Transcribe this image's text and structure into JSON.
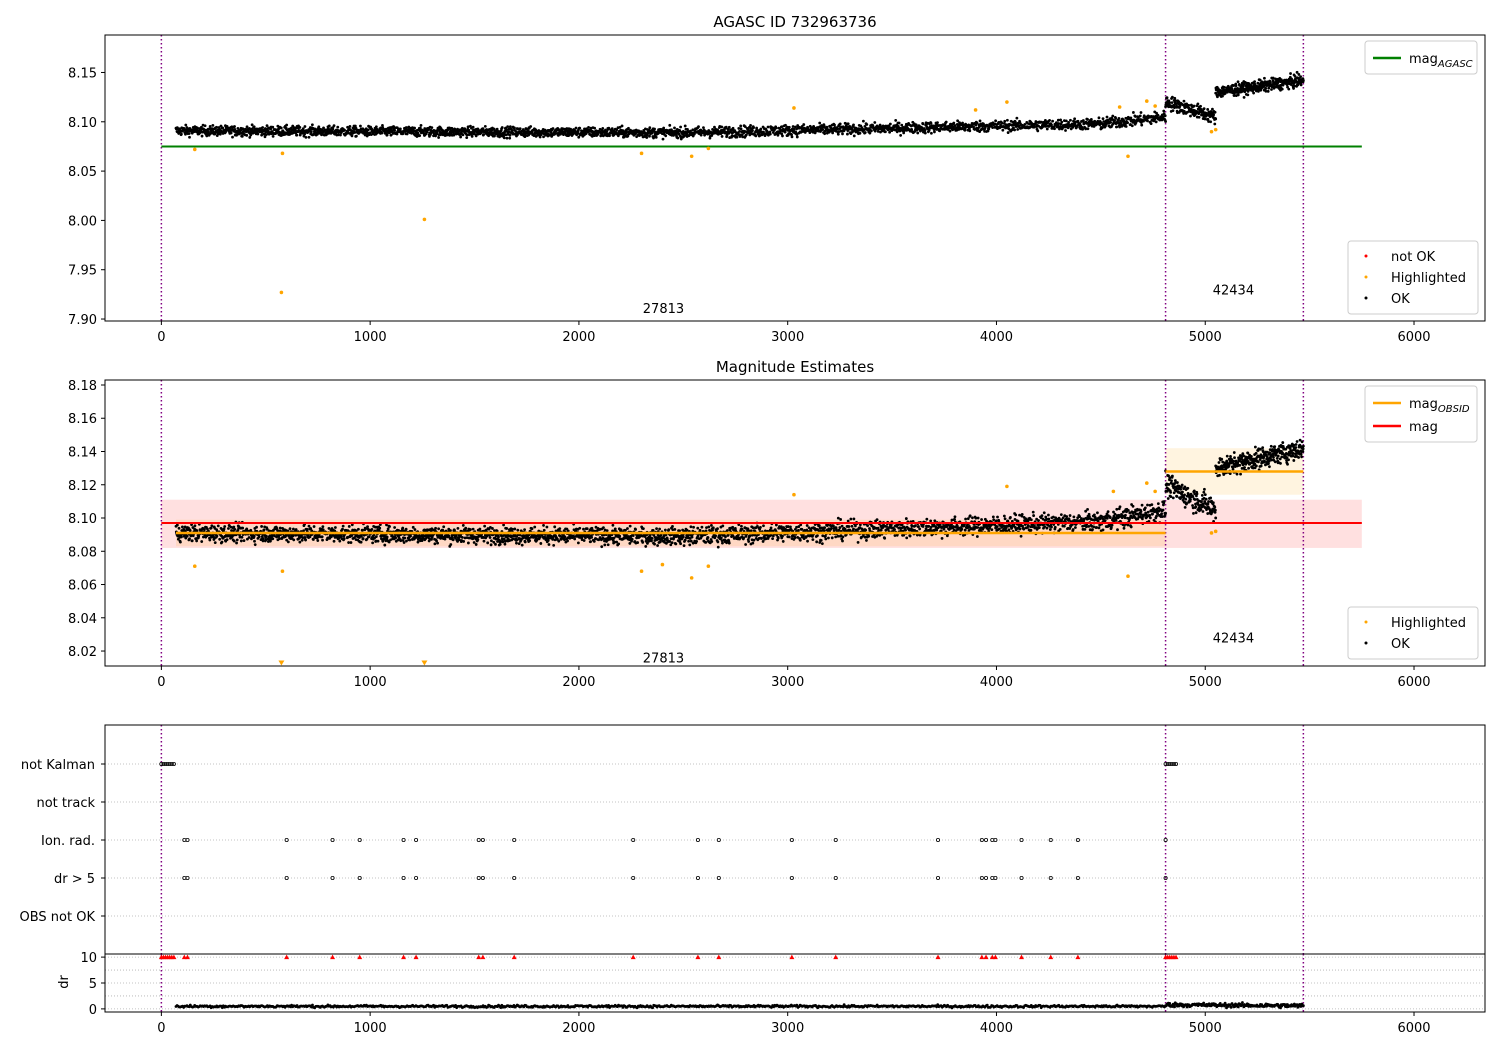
{
  "colors": {
    "ok": "#000000",
    "not_ok": "#ff0000",
    "highlighted": "#ffa500",
    "mag_agasc": "#008000",
    "mag_obsid": "#ffa500",
    "mag": "#ff0000",
    "boundary": "#800080"
  },
  "chart_data": [
    {
      "type": "scatter",
      "title": "AGASC ID 732963736",
      "xlim": [
        -270,
        6340
      ],
      "ylim": [
        7.898,
        8.188
      ],
      "xticks": [
        0,
        1000,
        2000,
        3000,
        4000,
        5000,
        6000
      ],
      "yticks": [
        7.9,
        7.95,
        8.0,
        8.05,
        8.1,
        8.15
      ],
      "ytick_labels": [
        "7.90",
        "7.95",
        "8.00",
        "8.05",
        "8.10",
        "8.15"
      ],
      "obsid_boundaries": [
        0,
        4810,
        5470
      ],
      "obsid_labels": [
        {
          "text": "27813",
          "x": 2405,
          "y": 7.911
        },
        {
          "text": "42434",
          "x": 5135,
          "y": 7.93
        }
      ],
      "series": [
        {
          "name": "mag_AGASC",
          "kind": "hline",
          "y": 8.075,
          "x": [
            0,
            5750
          ]
        },
        {
          "name": "not OK",
          "kind": "points",
          "points": []
        },
        {
          "name": "Highlighted",
          "kind": "points",
          "points": [
            [
              160,
              8.072
            ],
            [
              580,
              8.068
            ],
            [
              575,
              7.927
            ],
            [
              1260,
              8.001
            ],
            [
              2300,
              8.068
            ],
            [
              2540,
              8.065
            ],
            [
              2620,
              8.073
            ],
            [
              3030,
              8.114
            ],
            [
              4050,
              8.12
            ],
            [
              4630,
              8.065
            ],
            [
              4720,
              8.121
            ],
            [
              4760,
              8.116
            ],
            [
              5030,
              8.09
            ],
            [
              5050,
              8.092
            ],
            [
              3900,
              8.112
            ],
            [
              4590,
              8.115
            ]
          ]
        },
        {
          "name": "OK",
          "kind": "band",
          "segments": [
            {
              "x": [
                70,
                2500
              ],
              "center": [
                8.091,
                8.089
              ],
              "amp": 0.01,
              "n": 1500
            },
            {
              "x": [
                2500,
                4500
              ],
              "center": [
                8.089,
                8.098
              ],
              "amp": 0.011,
              "n": 1100
            },
            {
              "x": [
                4500,
                4810
              ],
              "center": [
                8.098,
                8.105
              ],
              "amp": 0.012,
              "n": 180
            },
            {
              "x": [
                4810,
                5050
              ],
              "center": [
                8.12,
                8.105
              ],
              "amp": 0.014,
              "n": 170
            },
            {
              "x": [
                5050,
                5470
              ],
              "center": [
                8.13,
                8.142
              ],
              "amp": 0.012,
              "n": 350
            }
          ]
        }
      ],
      "legend_lines": [
        {
          "label": "mag",
          "sub": "AGASC",
          "series": "mag_AGASC"
        }
      ],
      "legend_points": [
        "not OK",
        "Highlighted",
        "OK"
      ]
    },
    {
      "type": "scatter",
      "title": "Magnitude Estimates",
      "xlim": [
        -270,
        6340
      ],
      "ylim": [
        8.011,
        8.183
      ],
      "xticks": [
        0,
        1000,
        2000,
        3000,
        4000,
        5000,
        6000
      ],
      "yticks": [
        8.02,
        8.04,
        8.06,
        8.08,
        8.1,
        8.12,
        8.14,
        8.16,
        8.18
      ],
      "ytick_labels": [
        "8.02",
        "8.04",
        "8.06",
        "8.08",
        "8.10",
        "8.12",
        "8.14",
        "8.16",
        "8.18"
      ],
      "obsid_boundaries": [
        0,
        4810,
        5470
      ],
      "obsid_labels": [
        {
          "text": "27813",
          "x": 2405,
          "y": 8.016
        },
        {
          "text": "42434",
          "x": 5135,
          "y": 8.028
        }
      ],
      "bands": [
        {
          "series": "mag",
          "x": [
            0,
            5750
          ],
          "y": [
            8.082,
            8.111
          ],
          "color": "#ff0000",
          "opacity": 0.12
        },
        {
          "series": "mag_OBSID",
          "x": [
            70,
            4810
          ],
          "y": [
            8.083,
            8.099
          ],
          "color": "#ffa500",
          "opacity": 0.12
        },
        {
          "series": "mag_OBSID",
          "x": [
            4810,
            5470
          ],
          "y": [
            8.114,
            8.142
          ],
          "color": "#ffa500",
          "opacity": 0.12
        }
      ],
      "series": [
        {
          "name": "mag_OBSID",
          "kind": "segments",
          "segments": [
            {
              "x": [
                70,
                4810
              ],
              "y": 8.091
            },
            {
              "x": [
                4810,
                5470
              ],
              "y": 8.128
            }
          ]
        },
        {
          "name": "mag",
          "kind": "hline",
          "y": 8.097,
          "x": [
            0,
            5750
          ]
        },
        {
          "name": "Highlighted",
          "kind": "points",
          "points": [
            [
              160,
              8.071
            ],
            [
              580,
              8.068
            ],
            [
              2300,
              8.068
            ],
            [
              2400,
              8.072
            ],
            [
              2540,
              8.064
            ],
            [
              2620,
              8.071
            ],
            [
              3030,
              8.114
            ],
            [
              4050,
              8.119
            ],
            [
              4630,
              8.065
            ],
            [
              4720,
              8.121
            ],
            [
              4760,
              8.116
            ],
            [
              5030,
              8.091
            ],
            [
              5050,
              8.092
            ],
            [
              4560,
              8.116
            ]
          ]
        },
        {
          "name": "Highlighted (clipped)",
          "kind": "markers",
          "points": [
            [
              575,
              8.0125
            ],
            [
              1260,
              8.0125
            ]
          ]
        },
        {
          "name": "OK",
          "kind": "band",
          "segments": [
            {
              "x": [
                70,
                2500
              ],
              "center": [
                8.091,
                8.089
              ],
              "amp": 0.01,
              "n": 1500
            },
            {
              "x": [
                2500,
                4500
              ],
              "center": [
                8.089,
                8.098
              ],
              "amp": 0.011,
              "n": 1100
            },
            {
              "x": [
                4500,
                4810
              ],
              "center": [
                8.098,
                8.105
              ],
              "amp": 0.012,
              "n": 180
            },
            {
              "x": [
                4810,
                5050
              ],
              "center": [
                8.12,
                8.105
              ],
              "amp": 0.014,
              "n": 170
            },
            {
              "x": [
                5050,
                5470
              ],
              "center": [
                8.13,
                8.142
              ],
              "amp": 0.012,
              "n": 350
            }
          ]
        }
      ],
      "legend_lines": [
        {
          "label": "mag",
          "sub": "OBSID",
          "series": "mag_OBSID"
        },
        {
          "label": "mag",
          "sub": "",
          "series": "mag"
        }
      ],
      "legend_points": [
        "Highlighted",
        "OK"
      ]
    },
    {
      "type": "scatter",
      "title": "",
      "xlim": [
        -270,
        6340
      ],
      "categories": [
        "not Kalman",
        "not track",
        "Ion. rad.",
        "dr > 5",
        "OBS not OK"
      ],
      "obsid_boundaries": [
        0,
        4810,
        5470
      ],
      "flags": {
        "not Kalman": [
          0,
          10,
          20,
          30,
          40,
          50,
          60,
          4810,
          4820,
          4830,
          4840,
          4850,
          4860
        ],
        "not track": [],
        "Ion. rad.": [
          110,
          125,
          600,
          820,
          950,
          1160,
          1220,
          1520,
          1540,
          1690,
          2260,
          2570,
          2670,
          3020,
          3230,
          3720,
          3930,
          3950,
          3980,
          3995,
          4120,
          4260,
          4390,
          4810
        ],
        "dr > 5": [
          110,
          125,
          600,
          820,
          950,
          1160,
          1220,
          1520,
          1540,
          1690,
          2260,
          2570,
          2670,
          3020,
          3230,
          3720,
          3930,
          3950,
          3980,
          3995,
          4120,
          4260,
          4390,
          4810
        ],
        "OBS not OK": []
      }
    },
    {
      "type": "scatter",
      "title": "",
      "xlim": [
        -270,
        6340
      ],
      "ylim": [
        -0.6,
        10.6
      ],
      "ylabel": "dr",
      "yticks": [
        0,
        5,
        10
      ],
      "ytick_labels": [
        "0",
        "5",
        "10"
      ],
      "xticks": [
        0,
        1000,
        2000,
        3000,
        4000,
        5000,
        6000
      ],
      "obsid_boundaries": [
        0,
        4810,
        5470
      ],
      "series": [
        {
          "name": "dr",
          "kind": "band",
          "segments": [
            {
              "x": [
                70,
                4810
              ],
              "center": [
                0.5,
                0.5
              ],
              "amp": 0.45,
              "n": 900
            },
            {
              "x": [
                4810,
                5470
              ],
              "center": [
                0.8,
                0.6
              ],
              "amp": 0.8,
              "n": 200
            }
          ]
        },
        {
          "name": "dr clipped",
          "kind": "markers",
          "points": [
            [
              0,
              10
            ],
            [
              10,
              10
            ],
            [
              20,
              10
            ],
            [
              30,
              10
            ],
            [
              40,
              10
            ],
            [
              50,
              10
            ],
            [
              60,
              10
            ],
            [
              110,
              10
            ],
            [
              125,
              10
            ],
            [
              600,
              10
            ],
            [
              820,
              10
            ],
            [
              950,
              10
            ],
            [
              1160,
              10
            ],
            [
              1220,
              10
            ],
            [
              1520,
              10
            ],
            [
              1540,
              10
            ],
            [
              1690,
              10
            ],
            [
              2260,
              10
            ],
            [
              2570,
              10
            ],
            [
              2670,
              10
            ],
            [
              3020,
              10
            ],
            [
              3230,
              10
            ],
            [
              3720,
              10
            ],
            [
              3930,
              10
            ],
            [
              3950,
              10
            ],
            [
              3980,
              10
            ],
            [
              3995,
              10
            ],
            [
              4120,
              10
            ],
            [
              4260,
              10
            ],
            [
              4390,
              10
            ],
            [
              4810,
              10
            ],
            [
              4820,
              10
            ],
            [
              4830,
              10
            ],
            [
              4840,
              10
            ],
            [
              4850,
              10
            ],
            [
              4860,
              10
            ]
          ]
        }
      ]
    }
  ]
}
